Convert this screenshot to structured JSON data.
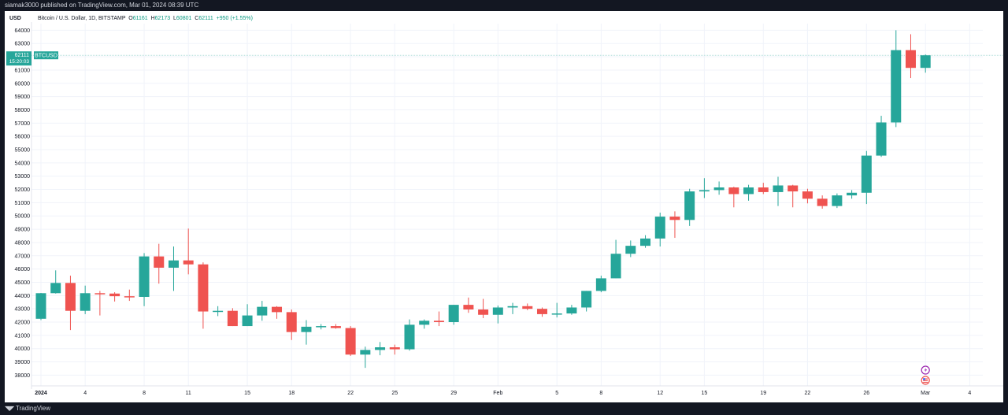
{
  "publisher": "siamak3000 published on TradingView.com, Mar 01, 2024 08:39 UTC",
  "footer": {
    "brand": "TradingView"
  },
  "header": {
    "currency": "USD",
    "symbol_desc": "Bitcoin / U.S. Dollar, 1D, BITSTAMP",
    "o_label": "O",
    "o_value": "61161",
    "h_label": "H",
    "h_value": "62173",
    "l_label": "L",
    "l_value": "60801",
    "c_label": "C",
    "c_value": "62111",
    "change": "+950 (+1.55%)"
  },
  "price_tag": {
    "price": "62111",
    "symbol": "BTCUSD",
    "countdown": "15:20:03"
  },
  "colors": {
    "up": "#26a69a",
    "down": "#ef5350",
    "grid": "#f0f3fa",
    "text": "#131722",
    "tag": "#26a69a"
  },
  "chart_data": {
    "type": "candlestick",
    "symbol": "BTCUSD",
    "timeframe": "1D",
    "exchange": "BITSTAMP",
    "ylim": [
      37200,
      64800
    ],
    "y_ticks": [
      38000,
      39000,
      40000,
      41000,
      42000,
      43000,
      44000,
      45000,
      46000,
      47000,
      48000,
      49000,
      50000,
      51000,
      52000,
      53000,
      54000,
      55000,
      56000,
      57000,
      58000,
      59000,
      60000,
      61000,
      62000,
      63000,
      64000
    ],
    "x_ticks": [
      {
        "label": "2024",
        "day": 0
      },
      {
        "label": "4",
        "day": 3
      },
      {
        "label": "8",
        "day": 7
      },
      {
        "label": "11",
        "day": 10
      },
      {
        "label": "15",
        "day": 14
      },
      {
        "label": "18",
        "day": 17
      },
      {
        "label": "22",
        "day": 21
      },
      {
        "label": "25",
        "day": 24
      },
      {
        "label": "29",
        "day": 28
      },
      {
        "label": "Feb",
        "day": 31
      },
      {
        "label": "5",
        "day": 35
      },
      {
        "label": "8",
        "day": 38
      },
      {
        "label": "12",
        "day": 42
      },
      {
        "label": "15",
        "day": 45
      },
      {
        "label": "19",
        "day": 49
      },
      {
        "label": "22",
        "day": 52
      },
      {
        "label": "26",
        "day": 56
      },
      {
        "label": "Mar",
        "day": 60
      },
      {
        "label": "4",
        "day": 63
      }
    ],
    "candles": [
      {
        "date": "2024-01-01",
        "o": 42250,
        "h": 44200,
        "l": 42150,
        "c": 44180
      },
      {
        "date": "2024-01-02",
        "o": 44180,
        "h": 45900,
        "l": 44150,
        "c": 44950
      },
      {
        "date": "2024-01-03",
        "o": 44950,
        "h": 45500,
        "l": 41400,
        "c": 42850
      },
      {
        "date": "2024-01-04",
        "o": 42850,
        "h": 44750,
        "l": 42600,
        "c": 44180
      },
      {
        "date": "2024-01-05",
        "o": 44180,
        "h": 44350,
        "l": 42500,
        "c": 44150
      },
      {
        "date": "2024-01-06",
        "o": 44150,
        "h": 44250,
        "l": 43550,
        "c": 43950
      },
      {
        "date": "2024-01-07",
        "o": 43950,
        "h": 44450,
        "l": 43600,
        "c": 43900
      },
      {
        "date": "2024-01-08",
        "o": 43900,
        "h": 47200,
        "l": 43200,
        "c": 46950
      },
      {
        "date": "2024-01-09",
        "o": 46950,
        "h": 47900,
        "l": 44900,
        "c": 46100
      },
      {
        "date": "2024-01-10",
        "o": 46100,
        "h": 47700,
        "l": 44350,
        "c": 46650
      },
      {
        "date": "2024-01-11",
        "o": 46650,
        "h": 49050,
        "l": 45600,
        "c": 46350
      },
      {
        "date": "2024-01-12",
        "o": 46350,
        "h": 46500,
        "l": 41500,
        "c": 42800
      },
      {
        "date": "2024-01-13",
        "o": 42800,
        "h": 43200,
        "l": 42450,
        "c": 42850
      },
      {
        "date": "2024-01-14",
        "o": 42850,
        "h": 43050,
        "l": 41700,
        "c": 41700
      },
      {
        "date": "2024-01-15",
        "o": 41700,
        "h": 43350,
        "l": 41700,
        "c": 42500
      },
      {
        "date": "2024-01-16",
        "o": 42500,
        "h": 43600,
        "l": 42100,
        "c": 43150
      },
      {
        "date": "2024-01-17",
        "o": 43150,
        "h": 43200,
        "l": 42250,
        "c": 42750
      },
      {
        "date": "2024-01-18",
        "o": 42750,
        "h": 42950,
        "l": 40650,
        "c": 41250
      },
      {
        "date": "2024-01-19",
        "o": 41250,
        "h": 42150,
        "l": 40300,
        "c": 41650
      },
      {
        "date": "2024-01-20",
        "o": 41650,
        "h": 41850,
        "l": 41450,
        "c": 41700
      },
      {
        "date": "2024-01-21",
        "o": 41700,
        "h": 41850,
        "l": 41500,
        "c": 41550
      },
      {
        "date": "2024-01-22",
        "o": 41550,
        "h": 41700,
        "l": 39450,
        "c": 39550
      },
      {
        "date": "2024-01-23",
        "o": 39550,
        "h": 40150,
        "l": 38550,
        "c": 39900
      },
      {
        "date": "2024-01-24",
        "o": 39900,
        "h": 40500,
        "l": 39500,
        "c": 40100
      },
      {
        "date": "2024-01-25",
        "o": 40100,
        "h": 40300,
        "l": 39550,
        "c": 39950
      },
      {
        "date": "2024-01-26",
        "o": 39950,
        "h": 42200,
        "l": 39850,
        "c": 41800
      },
      {
        "date": "2024-01-27",
        "o": 41800,
        "h": 42200,
        "l": 41500,
        "c": 42100
      },
      {
        "date": "2024-01-28",
        "o": 42100,
        "h": 42800,
        "l": 41700,
        "c": 42000
      },
      {
        "date": "2024-01-29",
        "o": 42000,
        "h": 43300,
        "l": 41800,
        "c": 43300
      },
      {
        "date": "2024-01-30",
        "o": 43300,
        "h": 43850,
        "l": 42700,
        "c": 42950
      },
      {
        "date": "2024-01-31",
        "o": 42950,
        "h": 43750,
        "l": 42300,
        "c": 42550
      },
      {
        "date": "2024-02-01",
        "o": 42550,
        "h": 43250,
        "l": 41900,
        "c": 43100
      },
      {
        "date": "2024-02-02",
        "o": 43100,
        "h": 43450,
        "l": 42600,
        "c": 43200
      },
      {
        "date": "2024-02-03",
        "o": 43200,
        "h": 43400,
        "l": 42900,
        "c": 43000
      },
      {
        "date": "2024-02-04",
        "o": 43000,
        "h": 43100,
        "l": 42400,
        "c": 42600
      },
      {
        "date": "2024-02-05",
        "o": 42600,
        "h": 43450,
        "l": 42350,
        "c": 42650
      },
      {
        "date": "2024-02-06",
        "o": 42650,
        "h": 43300,
        "l": 42550,
        "c": 43100
      },
      {
        "date": "2024-02-07",
        "o": 43100,
        "h": 44350,
        "l": 42800,
        "c": 44350
      },
      {
        "date": "2024-02-08",
        "o": 44350,
        "h": 45500,
        "l": 44250,
        "c": 45300
      },
      {
        "date": "2024-02-09",
        "o": 45300,
        "h": 48200,
        "l": 45300,
        "c": 47150
      },
      {
        "date": "2024-02-10",
        "o": 47150,
        "h": 48150,
        "l": 46900,
        "c": 47750
      },
      {
        "date": "2024-02-11",
        "o": 47750,
        "h": 48550,
        "l": 47600,
        "c": 48300
      },
      {
        "date": "2024-02-12",
        "o": 48300,
        "h": 50250,
        "l": 47700,
        "c": 49950
      },
      {
        "date": "2024-02-13",
        "o": 49950,
        "h": 50350,
        "l": 48350,
        "c": 49700
      },
      {
        "date": "2024-02-14",
        "o": 49700,
        "h": 52050,
        "l": 49250,
        "c": 51850
      },
      {
        "date": "2024-02-15",
        "o": 51850,
        "h": 52850,
        "l": 51350,
        "c": 51950
      },
      {
        "date": "2024-02-16",
        "o": 51950,
        "h": 52600,
        "l": 51600,
        "c": 52150
      },
      {
        "date": "2024-02-17",
        "o": 52150,
        "h": 52200,
        "l": 50650,
        "c": 51650
      },
      {
        "date": "2024-02-18",
        "o": 51650,
        "h": 52350,
        "l": 51150,
        "c": 52150
      },
      {
        "date": "2024-02-19",
        "o": 52150,
        "h": 52500,
        "l": 51650,
        "c": 51800
      },
      {
        "date": "2024-02-20",
        "o": 51800,
        "h": 52950,
        "l": 50750,
        "c": 52300
      },
      {
        "date": "2024-02-21",
        "o": 52300,
        "h": 52350,
        "l": 50650,
        "c": 51850
      },
      {
        "date": "2024-02-22",
        "o": 51850,
        "h": 52050,
        "l": 50950,
        "c": 51300
      },
      {
        "date": "2024-02-23",
        "o": 51300,
        "h": 51550,
        "l": 50550,
        "c": 50750
      },
      {
        "date": "2024-02-24",
        "o": 50750,
        "h": 51700,
        "l": 50600,
        "c": 51550
      },
      {
        "date": "2024-02-25",
        "o": 51550,
        "h": 51950,
        "l": 51300,
        "c": 51750
      },
      {
        "date": "2024-02-26",
        "o": 51750,
        "h": 54900,
        "l": 50900,
        "c": 54550
      },
      {
        "date": "2024-02-27",
        "o": 54550,
        "h": 57550,
        "l": 54450,
        "c": 57050
      },
      {
        "date": "2024-02-28",
        "o": 57050,
        "h": 64000,
        "l": 56700,
        "c": 62500
      },
      {
        "date": "2024-02-29",
        "o": 62500,
        "h": 63700,
        "l": 60400,
        "c": 61161
      },
      {
        "date": "2024-03-01",
        "o": 61161,
        "h": 62173,
        "l": 60801,
        "c": 62111
      }
    ],
    "last_price": 62111
  }
}
